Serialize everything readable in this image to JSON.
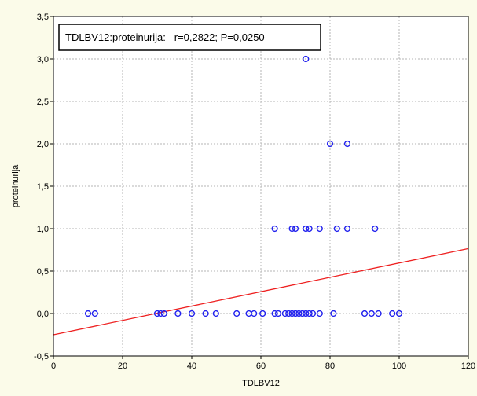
{
  "chart_data": {
    "type": "scatter",
    "xlabel": "TDLBV12",
    "ylabel": "proteinurija",
    "xlim": [
      0,
      120
    ],
    "ylim": [
      -0.5,
      3.5
    ],
    "x_ticks": [
      0,
      20,
      40,
      60,
      80,
      100,
      120
    ],
    "x_tick_labels": [
      "0",
      "20",
      "40",
      "60",
      "80",
      "100",
      "120"
    ],
    "y_ticks": [
      -0.5,
      0.0,
      0.5,
      1.0,
      1.5,
      2.0,
      2.5,
      3.0,
      3.5
    ],
    "y_tick_labels": [
      "-0,5",
      "0,0",
      "0,5",
      "1,0",
      "1,5",
      "2,0",
      "2,5",
      "3,0",
      "3,5"
    ],
    "grid": true,
    "annotation": "TDLBV12:proteinurija:   r=0,2822; P=0,0250",
    "points": [
      {
        "x": 10,
        "y": 0
      },
      {
        "x": 12,
        "y": 0
      },
      {
        "x": 30,
        "y": 0
      },
      {
        "x": 31,
        "y": 0
      },
      {
        "x": 32,
        "y": 0
      },
      {
        "x": 36,
        "y": 0
      },
      {
        "x": 40,
        "y": 0
      },
      {
        "x": 44,
        "y": 0
      },
      {
        "x": 47,
        "y": 0
      },
      {
        "x": 53,
        "y": 0
      },
      {
        "x": 56.5,
        "y": 0
      },
      {
        "x": 58,
        "y": 0
      },
      {
        "x": 60.5,
        "y": 0
      },
      {
        "x": 64,
        "y": 0
      },
      {
        "x": 65,
        "y": 0
      },
      {
        "x": 67,
        "y": 0
      },
      {
        "x": 68,
        "y": 0
      },
      {
        "x": 69,
        "y": 0
      },
      {
        "x": 70,
        "y": 0
      },
      {
        "x": 71,
        "y": 0
      },
      {
        "x": 72,
        "y": 0
      },
      {
        "x": 73,
        "y": 0
      },
      {
        "x": 74,
        "y": 0
      },
      {
        "x": 75,
        "y": 0
      },
      {
        "x": 77,
        "y": 0
      },
      {
        "x": 81,
        "y": 0
      },
      {
        "x": 90,
        "y": 0
      },
      {
        "x": 92,
        "y": 0
      },
      {
        "x": 94,
        "y": 0
      },
      {
        "x": 98,
        "y": 0
      },
      {
        "x": 100,
        "y": 0
      },
      {
        "x": 64,
        "y": 1
      },
      {
        "x": 69,
        "y": 1
      },
      {
        "x": 70,
        "y": 1
      },
      {
        "x": 73,
        "y": 1
      },
      {
        "x": 74,
        "y": 1
      },
      {
        "x": 77,
        "y": 1
      },
      {
        "x": 82,
        "y": 1
      },
      {
        "x": 85,
        "y": 1
      },
      {
        "x": 93,
        "y": 1
      },
      {
        "x": 80,
        "y": 2
      },
      {
        "x": 85,
        "y": 2
      },
      {
        "x": 73,
        "y": 3
      }
    ],
    "regression_line": {
      "x": [
        0,
        120
      ],
      "y": [
        -0.25,
        0.765
      ]
    },
    "colors": {
      "background": "#fbfbe9",
      "plot_area": "#ffffff",
      "grid": "#b4b4b4",
      "points": "#2222ee",
      "regression": "#ee2020",
      "annotation_border": "#000000"
    }
  }
}
